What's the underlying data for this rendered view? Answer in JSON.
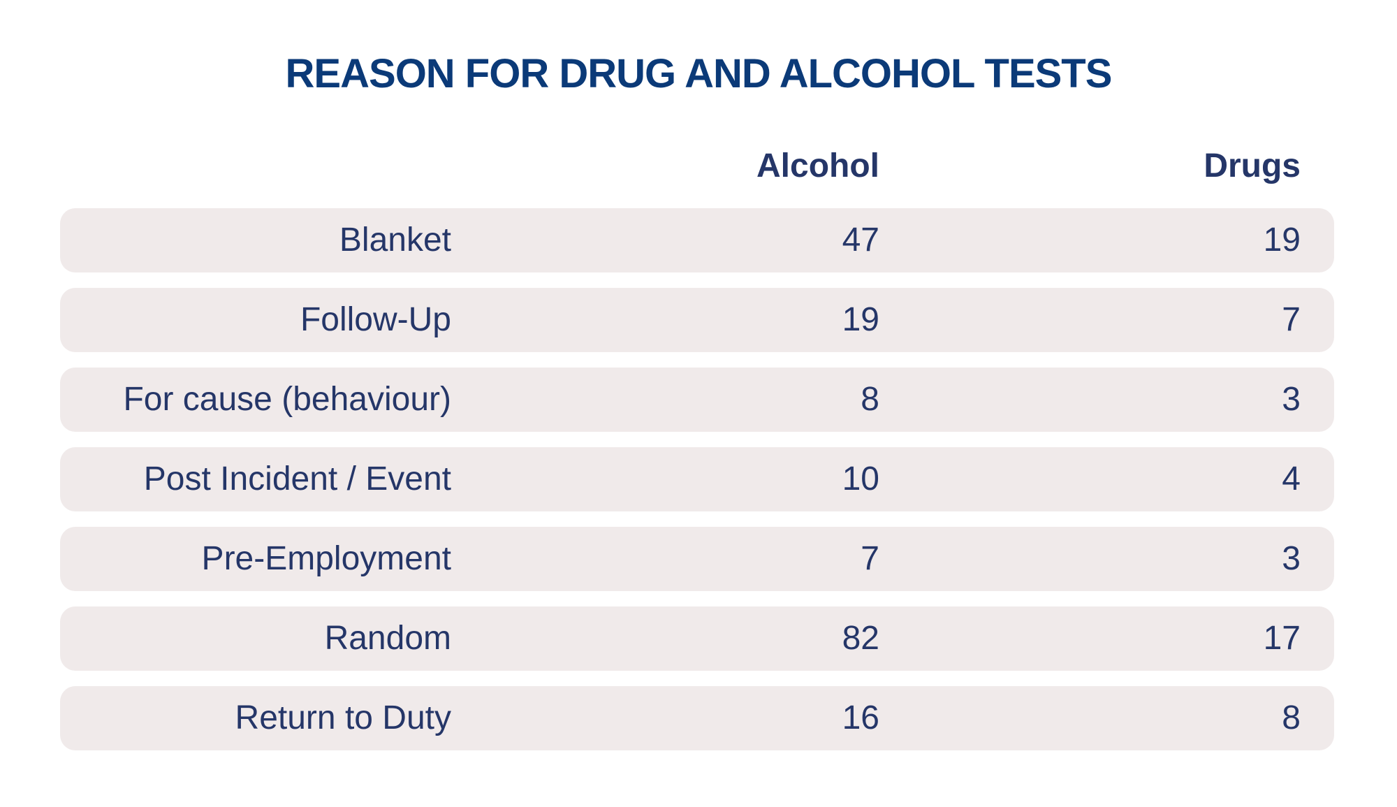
{
  "chart_data": {
    "type": "table",
    "title": "REASON FOR DRUG AND ALCOHOL TESTS",
    "columns": [
      "Alcohol",
      "Drugs"
    ],
    "categories": [
      "Blanket",
      "Follow-Up",
      "For cause (behaviour)",
      "Post Incident / Event",
      "Pre-Employment",
      "Random",
      "Return to Duty"
    ],
    "series": [
      {
        "name": "Alcohol",
        "values": [
          47,
          19,
          8,
          10,
          7,
          82,
          16
        ]
      },
      {
        "name": "Drugs",
        "values": [
          19,
          7,
          3,
          4,
          3,
          17,
          8
        ]
      }
    ]
  },
  "colors": {
    "title": "#0b3a78",
    "text": "#253668",
    "row_background": "#f0eaea"
  }
}
